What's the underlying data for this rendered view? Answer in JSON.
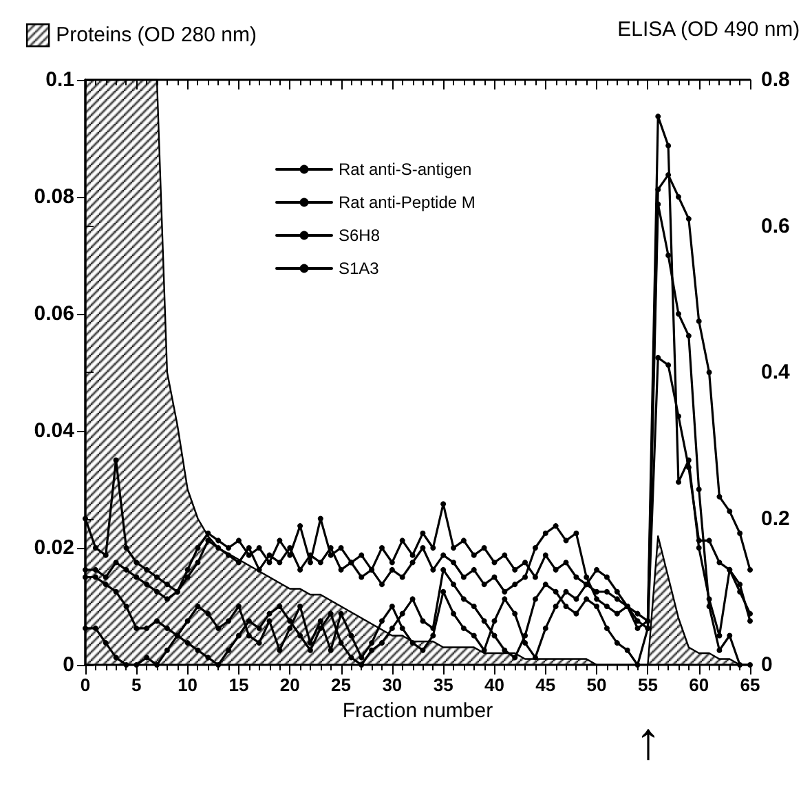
{
  "chart_data": {
    "type": "line",
    "xlabel": "Fraction number",
    "y2label": "ELISA (OD 490 nm)",
    "x": [
      0,
      1,
      2,
      3,
      4,
      5,
      6,
      7,
      8,
      9,
      10,
      11,
      12,
      13,
      14,
      15,
      16,
      17,
      18,
      19,
      20,
      21,
      22,
      23,
      24,
      25,
      26,
      27,
      28,
      29,
      30,
      31,
      32,
      33,
      34,
      35,
      36,
      37,
      38,
      39,
      40,
      41,
      42,
      43,
      44,
      45,
      46,
      47,
      48,
      49,
      50,
      51,
      52,
      53,
      54,
      55,
      56,
      57,
      58,
      59,
      60,
      61,
      62,
      63,
      64,
      65
    ],
    "series": [
      {
        "name": "Proteins (OD 280 nm)",
        "type": "area",
        "marker": "none",
        "color": "#000000",
        "values": [
          0.1,
          0.1,
          0.1,
          0.1,
          0.1,
          0.1,
          0.1,
          0.1,
          0.05,
          0.041,
          0.03,
          0.025,
          0.022,
          0.02,
          0.019,
          0.018,
          0.017,
          0.016,
          0.015,
          0.014,
          0.013,
          0.013,
          0.012,
          0.012,
          0.011,
          0.01,
          0.009,
          0.008,
          0.007,
          0.006,
          0.005,
          0.005,
          0.004,
          0.004,
          0.004,
          0.003,
          0.003,
          0.003,
          0.003,
          0.002,
          0.002,
          0.002,
          0.002,
          0.001,
          0.001,
          0.001,
          0.001,
          0.001,
          0.001,
          0.001,
          0,
          0,
          0,
          0,
          0,
          0,
          0.022,
          0.015,
          0.008,
          0.003,
          0.002,
          0.002,
          0.001,
          0.001,
          0,
          0
        ]
      },
      {
        "name": "Rat anti-S-antigen",
        "axis": "y2",
        "color": "#000000",
        "values": [
          0.2,
          0.16,
          0.15,
          0.28,
          0.16,
          0.14,
          0.13,
          0.12,
          0.11,
          0.1,
          0.13,
          0.16,
          0.18,
          0.17,
          0.16,
          0.17,
          0.15,
          0.16,
          0.14,
          0.17,
          0.15,
          0.19,
          0.14,
          0.2,
          0.15,
          0.16,
          0.14,
          0.15,
          0.13,
          0.16,
          0.14,
          0.17,
          0.15,
          0.18,
          0.16,
          0.22,
          0.16,
          0.17,
          0.15,
          0.16,
          0.14,
          0.15,
          0.13,
          0.14,
          0.12,
          0.15,
          0.13,
          0.14,
          0.12,
          0.11,
          0.1,
          0.1,
          0.09,
          0.08,
          0.07,
          0.06,
          0.75,
          0.71,
          0.25,
          0.28,
          0.16,
          0.09,
          0.04,
          0.13,
          0.11,
          0.06
        ]
      },
      {
        "name": "Rat anti-Peptide M",
        "axis": "y2",
        "color": "#000000",
        "values": [
          0.13,
          0.13,
          0.12,
          0.14,
          0.13,
          0.12,
          0.11,
          0.1,
          0.09,
          0.1,
          0.12,
          0.14,
          0.17,
          0.16,
          0.15,
          0.14,
          0.16,
          0.13,
          0.15,
          0.14,
          0.16,
          0.13,
          0.15,
          0.14,
          0.16,
          0.13,
          0.14,
          0.12,
          0.13,
          0.11,
          0.13,
          0.12,
          0.14,
          0.16,
          0.13,
          0.15,
          0.14,
          0.12,
          0.13,
          0.11,
          0.12,
          0.1,
          0.11,
          0.12,
          0.16,
          0.18,
          0.19,
          0.17,
          0.18,
          0.12,
          0.09,
          0.08,
          0.07,
          0.08,
          0.05,
          0.06,
          0.65,
          0.67,
          0.64,
          0.61,
          0.47,
          0.4,
          0.23,
          0.21,
          0.18,
          0.13
        ]
      },
      {
        "name": "S6H8",
        "axis": "y2",
        "color": "#000000",
        "values": [
          0.05,
          0.05,
          0.03,
          0.01,
          0,
          0,
          0.01,
          0,
          0.02,
          0.04,
          0.06,
          0.08,
          0.07,
          0.05,
          0.06,
          0.08,
          0.04,
          0.03,
          0.06,
          0.02,
          0.05,
          0.08,
          0.03,
          0.06,
          0.02,
          0.07,
          0.04,
          0.01,
          0.03,
          0.06,
          0.08,
          0.05,
          0.03,
          0.02,
          0.04,
          0.1,
          0.07,
          0.05,
          0.04,
          0.02,
          0.06,
          0.09,
          0.07,
          0.03,
          0.01,
          0.05,
          0.08,
          0.1,
          0.09,
          0.11,
          0.13,
          0.12,
          0.1,
          0.08,
          0.06,
          0.05,
          0.63,
          0.56,
          0.48,
          0.45,
          0.24,
          0.08,
          0.02,
          0.04,
          0,
          0
        ]
      },
      {
        "name": "S1A3",
        "axis": "y2",
        "color": "#000000",
        "values": [
          0.12,
          0.12,
          0.11,
          0.1,
          0.08,
          0.05,
          0.05,
          0.06,
          0.05,
          0.04,
          0.03,
          0.02,
          0.01,
          0,
          0.02,
          0.04,
          0.06,
          0.05,
          0.07,
          0.08,
          0.06,
          0.04,
          0.02,
          0.05,
          0.07,
          0.03,
          0.01,
          0,
          0.02,
          0.03,
          0.05,
          0.07,
          0.09,
          0.06,
          0.05,
          0.13,
          0.11,
          0.09,
          0.08,
          0.06,
          0.04,
          0.02,
          0.01,
          0.04,
          0.09,
          0.11,
          0.1,
          0.08,
          0.07,
          0.09,
          0.08,
          0.05,
          0.03,
          0.02,
          0,
          0.05,
          0.42,
          0.41,
          0.34,
          0.27,
          0.17,
          0.17,
          0.14,
          0.13,
          0.1,
          0.07
        ]
      }
    ],
    "xlim": [
      0,
      65
    ],
    "xticks": [
      0,
      5,
      10,
      15,
      20,
      25,
      30,
      35,
      40,
      45,
      50,
      55,
      60,
      65
    ],
    "ylim": [
      0,
      0.1
    ],
    "yticks": [
      0,
      0.02,
      0.04,
      0.06,
      0.08,
      0.1
    ],
    "y2lim": [
      0,
      0.8
    ],
    "y2ticks": [
      0,
      0.2,
      0.4,
      0.6,
      0.8
    ],
    "annotations": [
      "↑"
    ],
    "marker": "circle",
    "line_style": "solid",
    "grid": false,
    "legend": "top"
  }
}
